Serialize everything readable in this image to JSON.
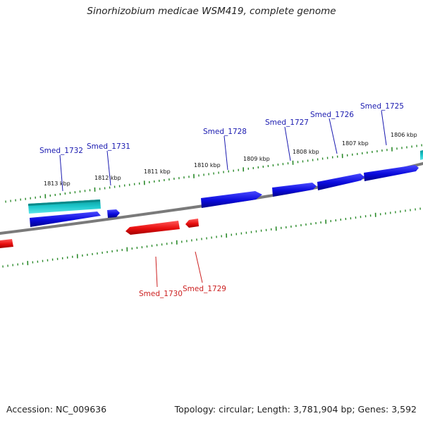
{
  "title": "Sinorhizobium medicae WSM419, complete genome",
  "footer": {
    "accession": "Accession: NC_009636",
    "summary": "Topology: circular; Length: 3,781,904 bp; Genes: 3,592"
  },
  "colors": {
    "forward_cds": "#0a0adc",
    "reverse_cds": "#e80e0e",
    "rna": "#1ec8cc",
    "backbone": "#808080",
    "tick": "#2a8a2a",
    "label_forward": "#1a1ab0",
    "label_reverse": "#cc2020"
  },
  "scale_ticks": [
    "1813 kbp",
    "1812 kbp",
    "1811 kbp",
    "1810 kbp",
    "1809 kbp",
    "1808 kbp",
    "1807 kbp",
    "1806 kbp"
  ],
  "genes_forward": [
    "Smed_1732",
    "Smed_1731",
    "Smed_1728",
    "Smed_1727",
    "Smed_1726",
    "Smed_1725"
  ],
  "genes_reverse": [
    "Smed_1730",
    "Smed_1729"
  ]
}
